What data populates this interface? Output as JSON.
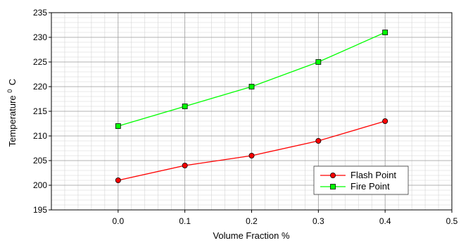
{
  "chart_data": {
    "type": "line",
    "title": "",
    "xlabel": "Volume Fraction %",
    "ylabel": "Temperature",
    "ylabel_superscript": "0",
    "ylabel_suffix": "C",
    "xlim": [
      -0.1,
      0.5
    ],
    "ylim": [
      195,
      235
    ],
    "x_ticks": [
      "0.0",
      "0.1",
      "0.2",
      "0.3",
      "0.4",
      "0.5"
    ],
    "y_ticks": [
      "195",
      "200",
      "205",
      "210",
      "215",
      "220",
      "225",
      "230",
      "235"
    ],
    "x": [
      0.0,
      0.1,
      0.2,
      0.3,
      0.4
    ],
    "grid": true,
    "legend_position": "bottom-right",
    "series": [
      {
        "name": "Flash Point",
        "values": [
          201,
          204,
          206,
          209,
          213
        ],
        "color": "#ff0000",
        "marker": "circle"
      },
      {
        "name": "Fire Point",
        "values": [
          212,
          216,
          220,
          225,
          231
        ],
        "color": "#00ff00",
        "marker": "square"
      }
    ]
  }
}
